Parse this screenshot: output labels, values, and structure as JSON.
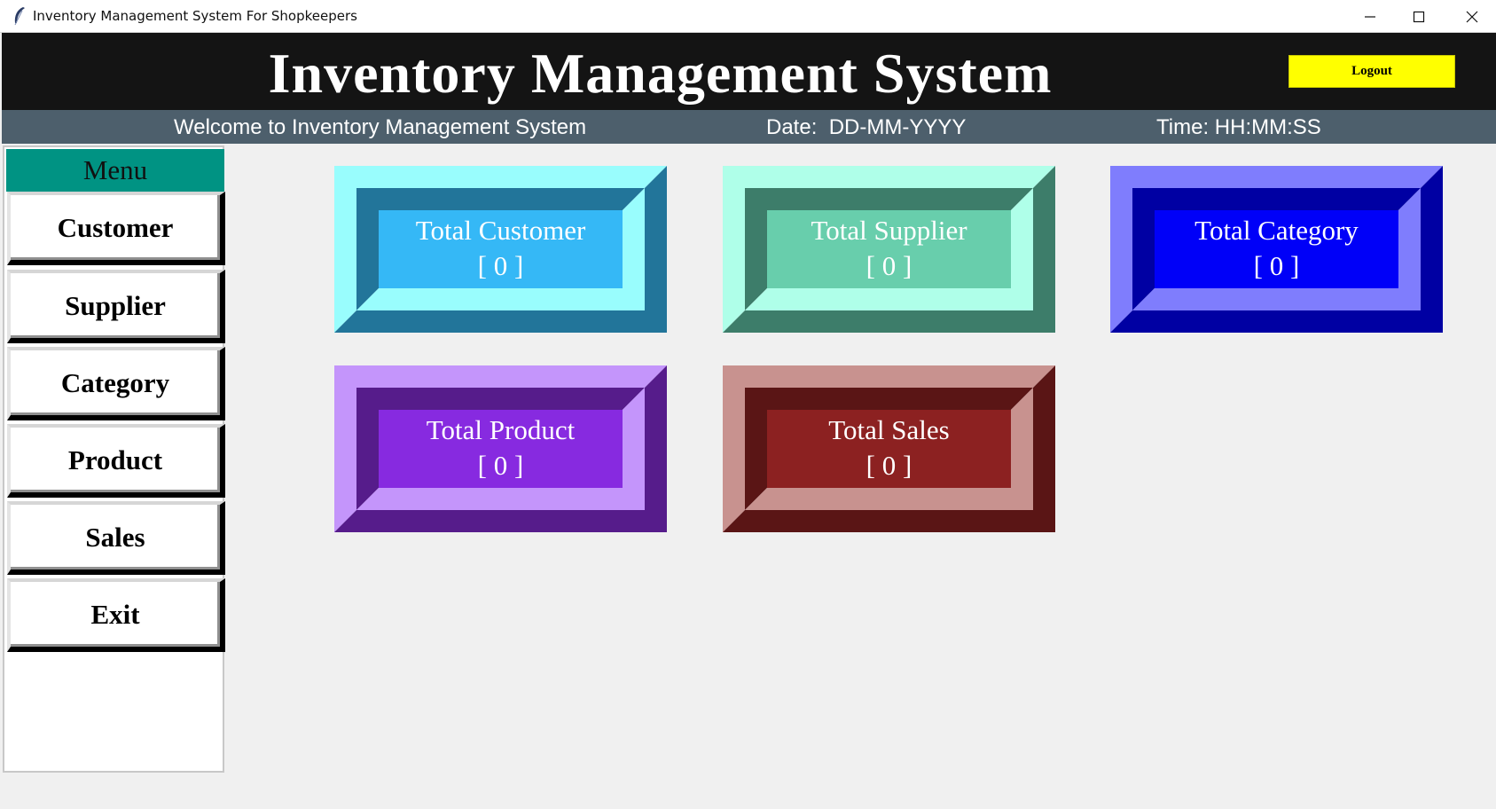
{
  "window": {
    "title": "Inventory Management System For Shopkeepers",
    "controls": {
      "minimize_icon": "minimize-icon",
      "maximize_icon": "maximize-icon",
      "close_icon": "close-icon"
    }
  },
  "header": {
    "title": "Inventory Management System",
    "logout_label": "Logout",
    "logout_color": "#ffff00"
  },
  "status_bar": {
    "welcome": "Welcome to Inventory Management System",
    "date": "Date:  DD-MM-YYYY",
    "time": "Time: HH:MM:SS"
  },
  "menu": {
    "title": "Menu",
    "items": [
      {
        "label": "Customer"
      },
      {
        "label": "Supplier"
      },
      {
        "label": "Category"
      },
      {
        "label": "Product"
      },
      {
        "label": "Sales"
      },
      {
        "label": "Exit"
      }
    ]
  },
  "tiles": [
    {
      "title": "Total Customer",
      "value": "[ 0 ]",
      "colors": {
        "light": "#99fdfd",
        "dark": "#22759a",
        "face": "#35b8f6"
      }
    },
    {
      "title": "Total Supplier",
      "value": "[ 0 ]",
      "colors": {
        "light": "#afffe9",
        "dark": "#3d7d6a",
        "face": "#68ceac"
      }
    },
    {
      "title": "Total Category",
      "value": "[ 0 ]",
      "colors": {
        "light": "#7f7dfd",
        "dark": "#0000a3",
        "face": "#0000f8"
      }
    },
    {
      "title": "Total Product",
      "value": "[ 0 ]",
      "colors": {
        "light": "#c495fb",
        "dark": "#561c8b",
        "face": "#872ae0"
      }
    },
    {
      "title": "Total Sales",
      "value": "[ 0 ]",
      "colors": {
        "light": "#c8928f",
        "dark": "#5a1515",
        "face": "#8c2121"
      }
    }
  ]
}
